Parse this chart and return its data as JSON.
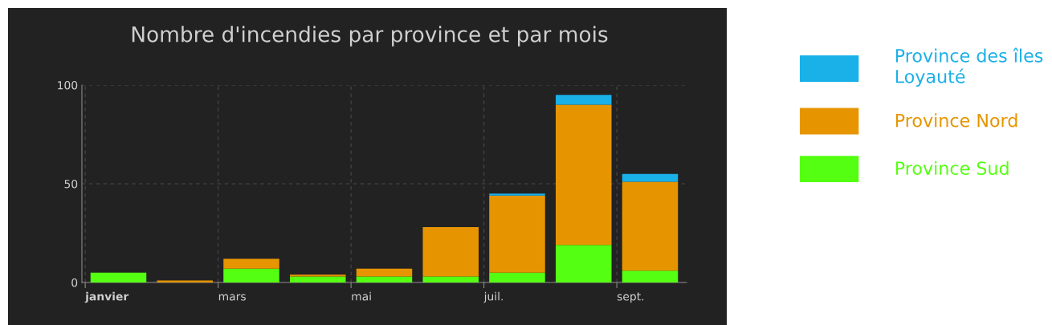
{
  "chart_data": {
    "type": "bar",
    "title": "Nombre d'incendies par province et par mois",
    "categories": [
      "janvier",
      null,
      "mars",
      null,
      "mai",
      null,
      "juil.",
      null,
      "sept."
    ],
    "stacked": true,
    "series": [
      {
        "name": "Province Sud",
        "color": "#55ff11",
        "values": [
          5,
          0,
          7,
          3,
          3,
          3,
          5,
          19,
          6
        ]
      },
      {
        "name": "Province Nord",
        "color": "#e69500",
        "values": [
          0,
          1,
          5,
          1,
          4,
          25,
          39,
          71,
          45
        ]
      },
      {
        "name": "Province des îles Loyauté",
        "color": "#1ab0e8",
        "values": [
          0,
          0,
          0,
          0,
          0,
          0,
          1,
          5,
          4
        ]
      }
    ],
    "ylim": [
      0,
      100
    ],
    "yticks": [
      0,
      50,
      100
    ],
    "grid": true,
    "legend": "right"
  }
}
